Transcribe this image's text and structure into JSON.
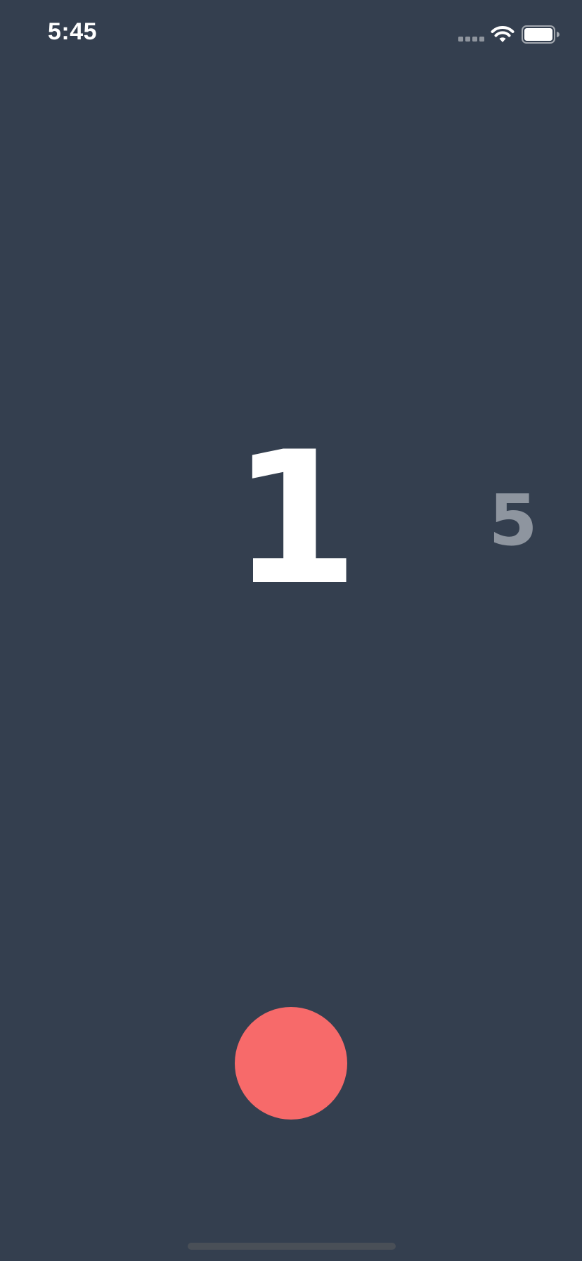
{
  "status_bar": {
    "time": "5:45",
    "signal_icon": "cellular-signal-icon",
    "wifi_icon": "wifi-icon",
    "battery_icon": "battery-icon"
  },
  "counter": {
    "current": "1",
    "next": "5"
  },
  "record_button": {
    "icon": "record-circle",
    "color": "#f76a6a"
  },
  "colors": {
    "background": "#343f4f",
    "primary_text": "#ffffff",
    "secondary_text": "#8e959f",
    "accent": "#f76a6a"
  }
}
